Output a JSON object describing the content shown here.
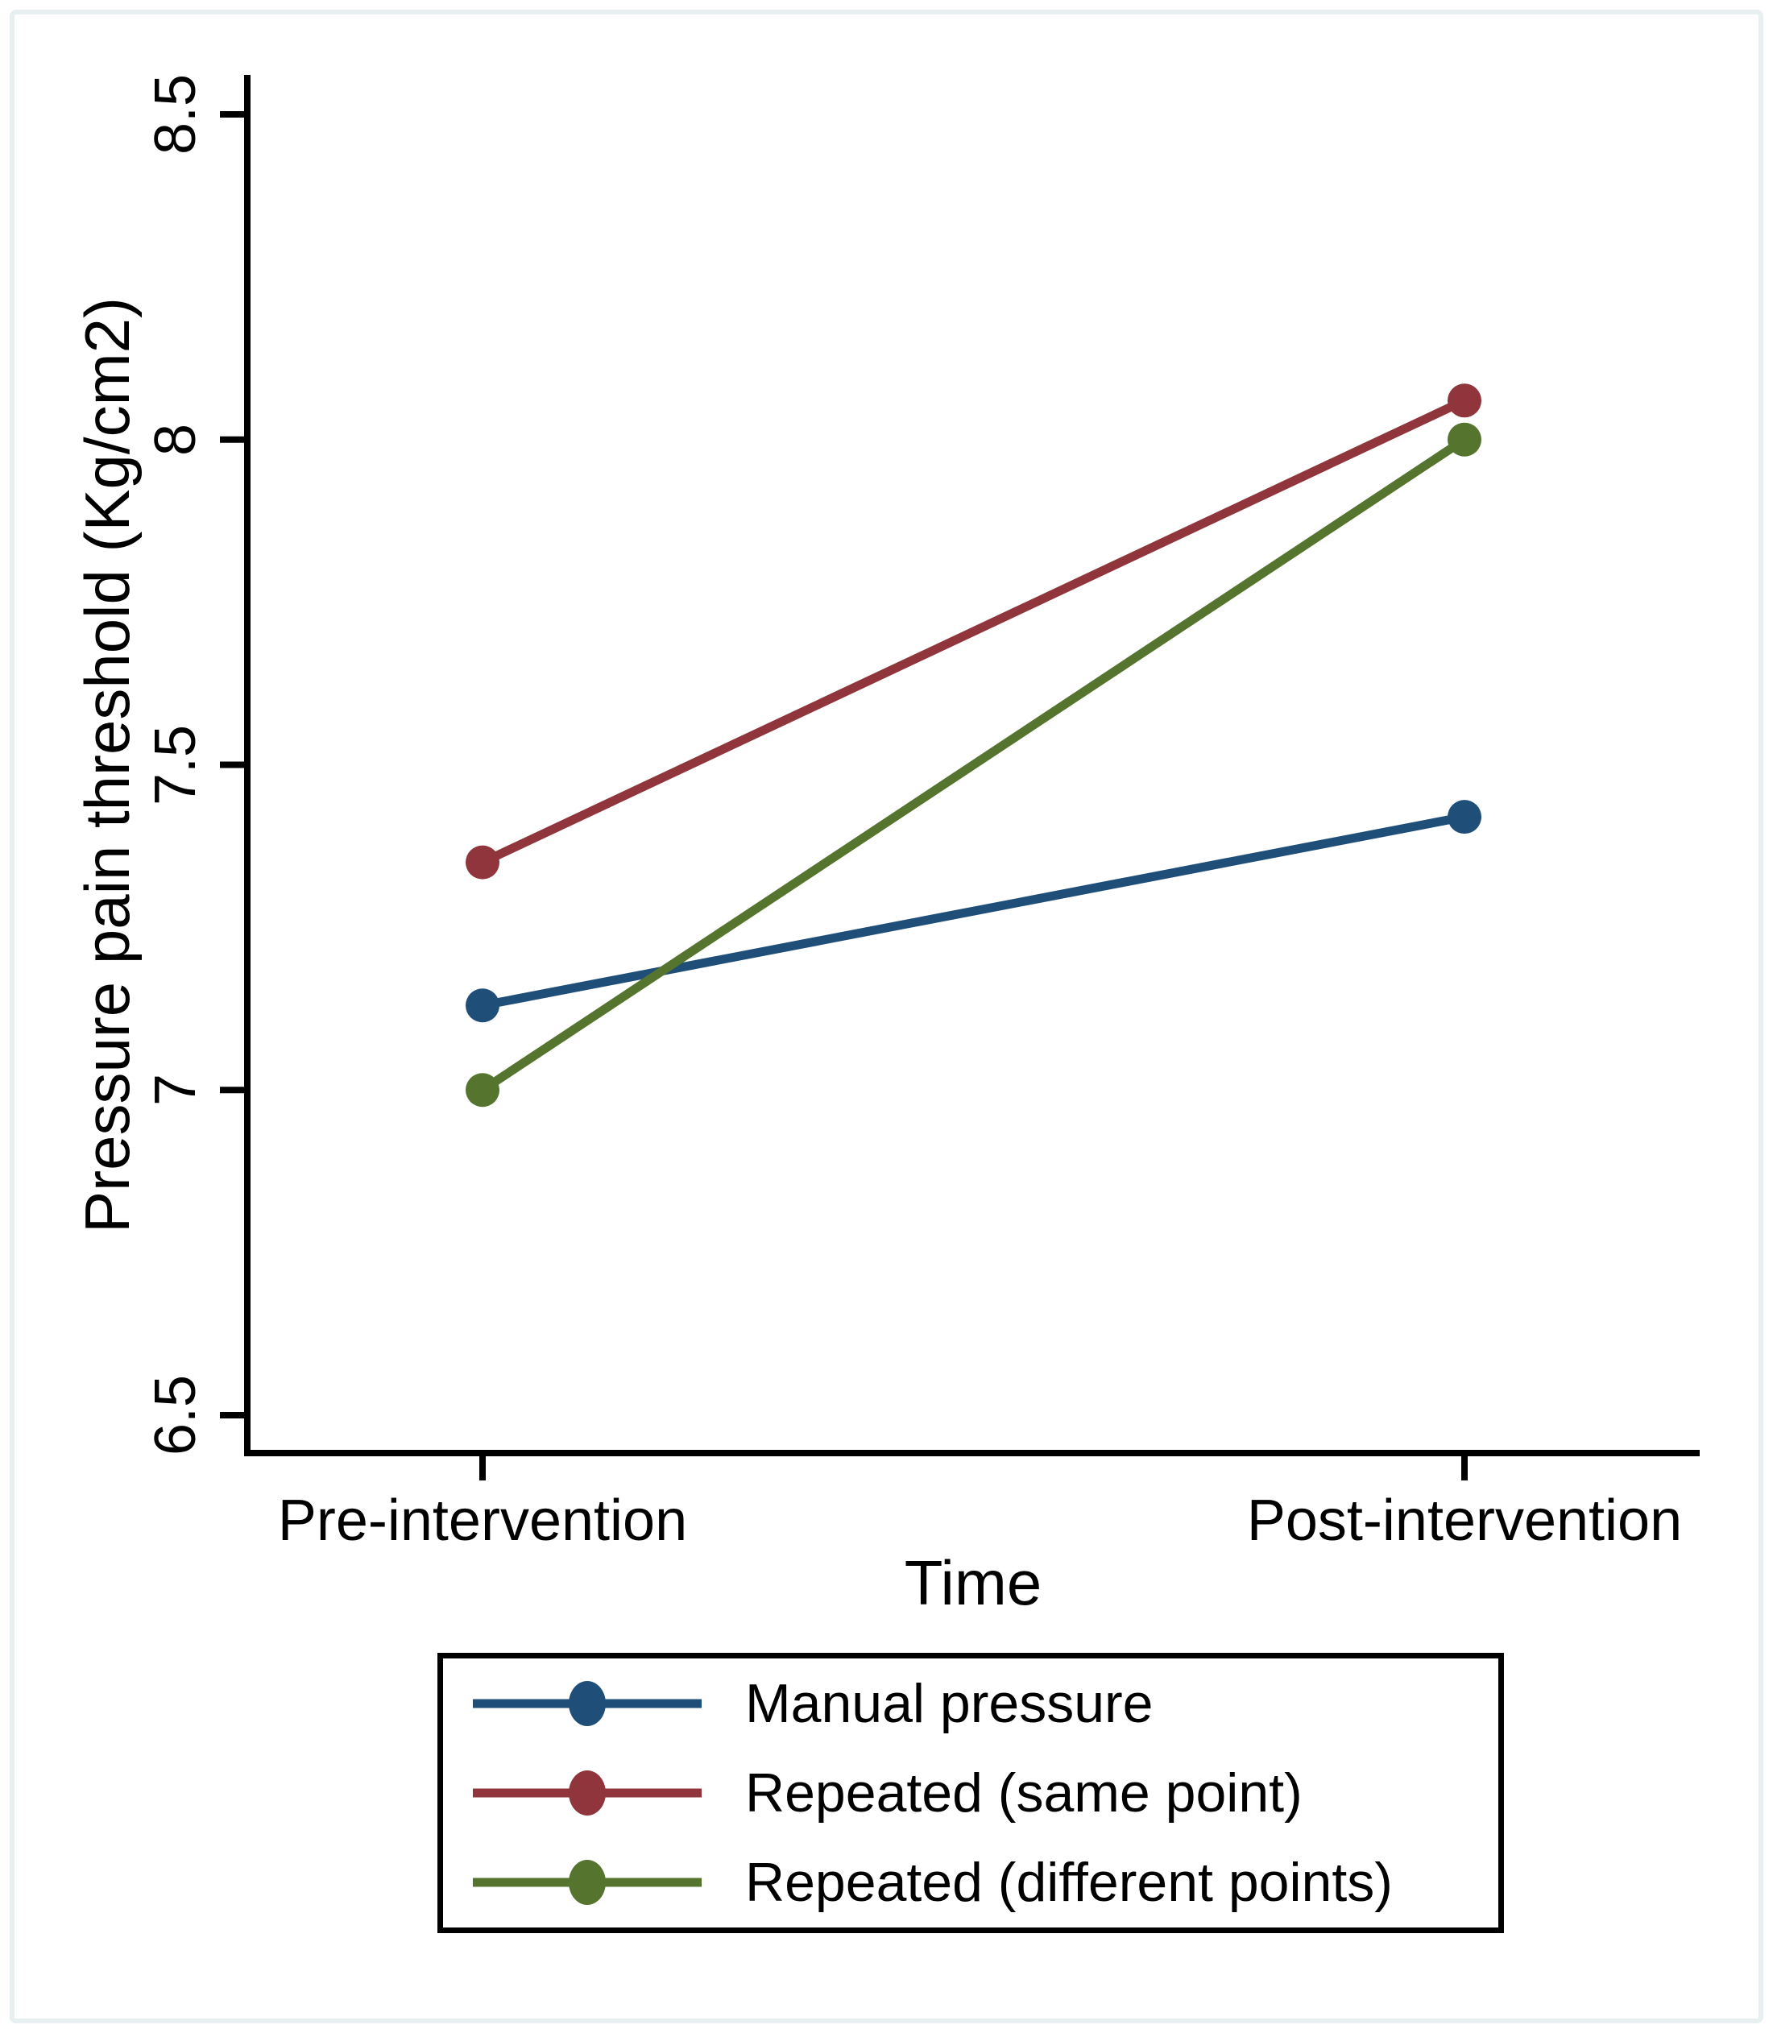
{
  "figure": {
    "background_color": "#ffffff",
    "frame_border_color": "#e8eff1"
  },
  "chart_data": {
    "type": "line",
    "title": "",
    "xlabel": "Time",
    "ylabel": "Pressure pain threshold (Kg/cm2)",
    "categories": [
      "Pre-intervention",
      "Post-intervention"
    ],
    "series": [
      {
        "name": "Manual pressure",
        "color": "#1f4e79",
        "values": [
          7.13,
          7.42
        ]
      },
      {
        "name": "Repeated (same point)",
        "color": "#90353b",
        "values": [
          7.35,
          8.06
        ]
      },
      {
        "name": "Repeated (different points)",
        "color": "#55752f",
        "values": [
          7.0,
          8.0
        ]
      }
    ],
    "ylim": [
      6.5,
      8.5
    ],
    "yticks": [
      8.5,
      8,
      7.5,
      7,
      6.5
    ],
    "ytick_labels": [
      "8.5",
      "8",
      "7.5",
      "7",
      "6.5"
    ],
    "ytick_label_angle_deg": 90,
    "marker": "filled-circle",
    "grid": false,
    "legend_position": "bottom",
    "axis_color": "#000000"
  }
}
